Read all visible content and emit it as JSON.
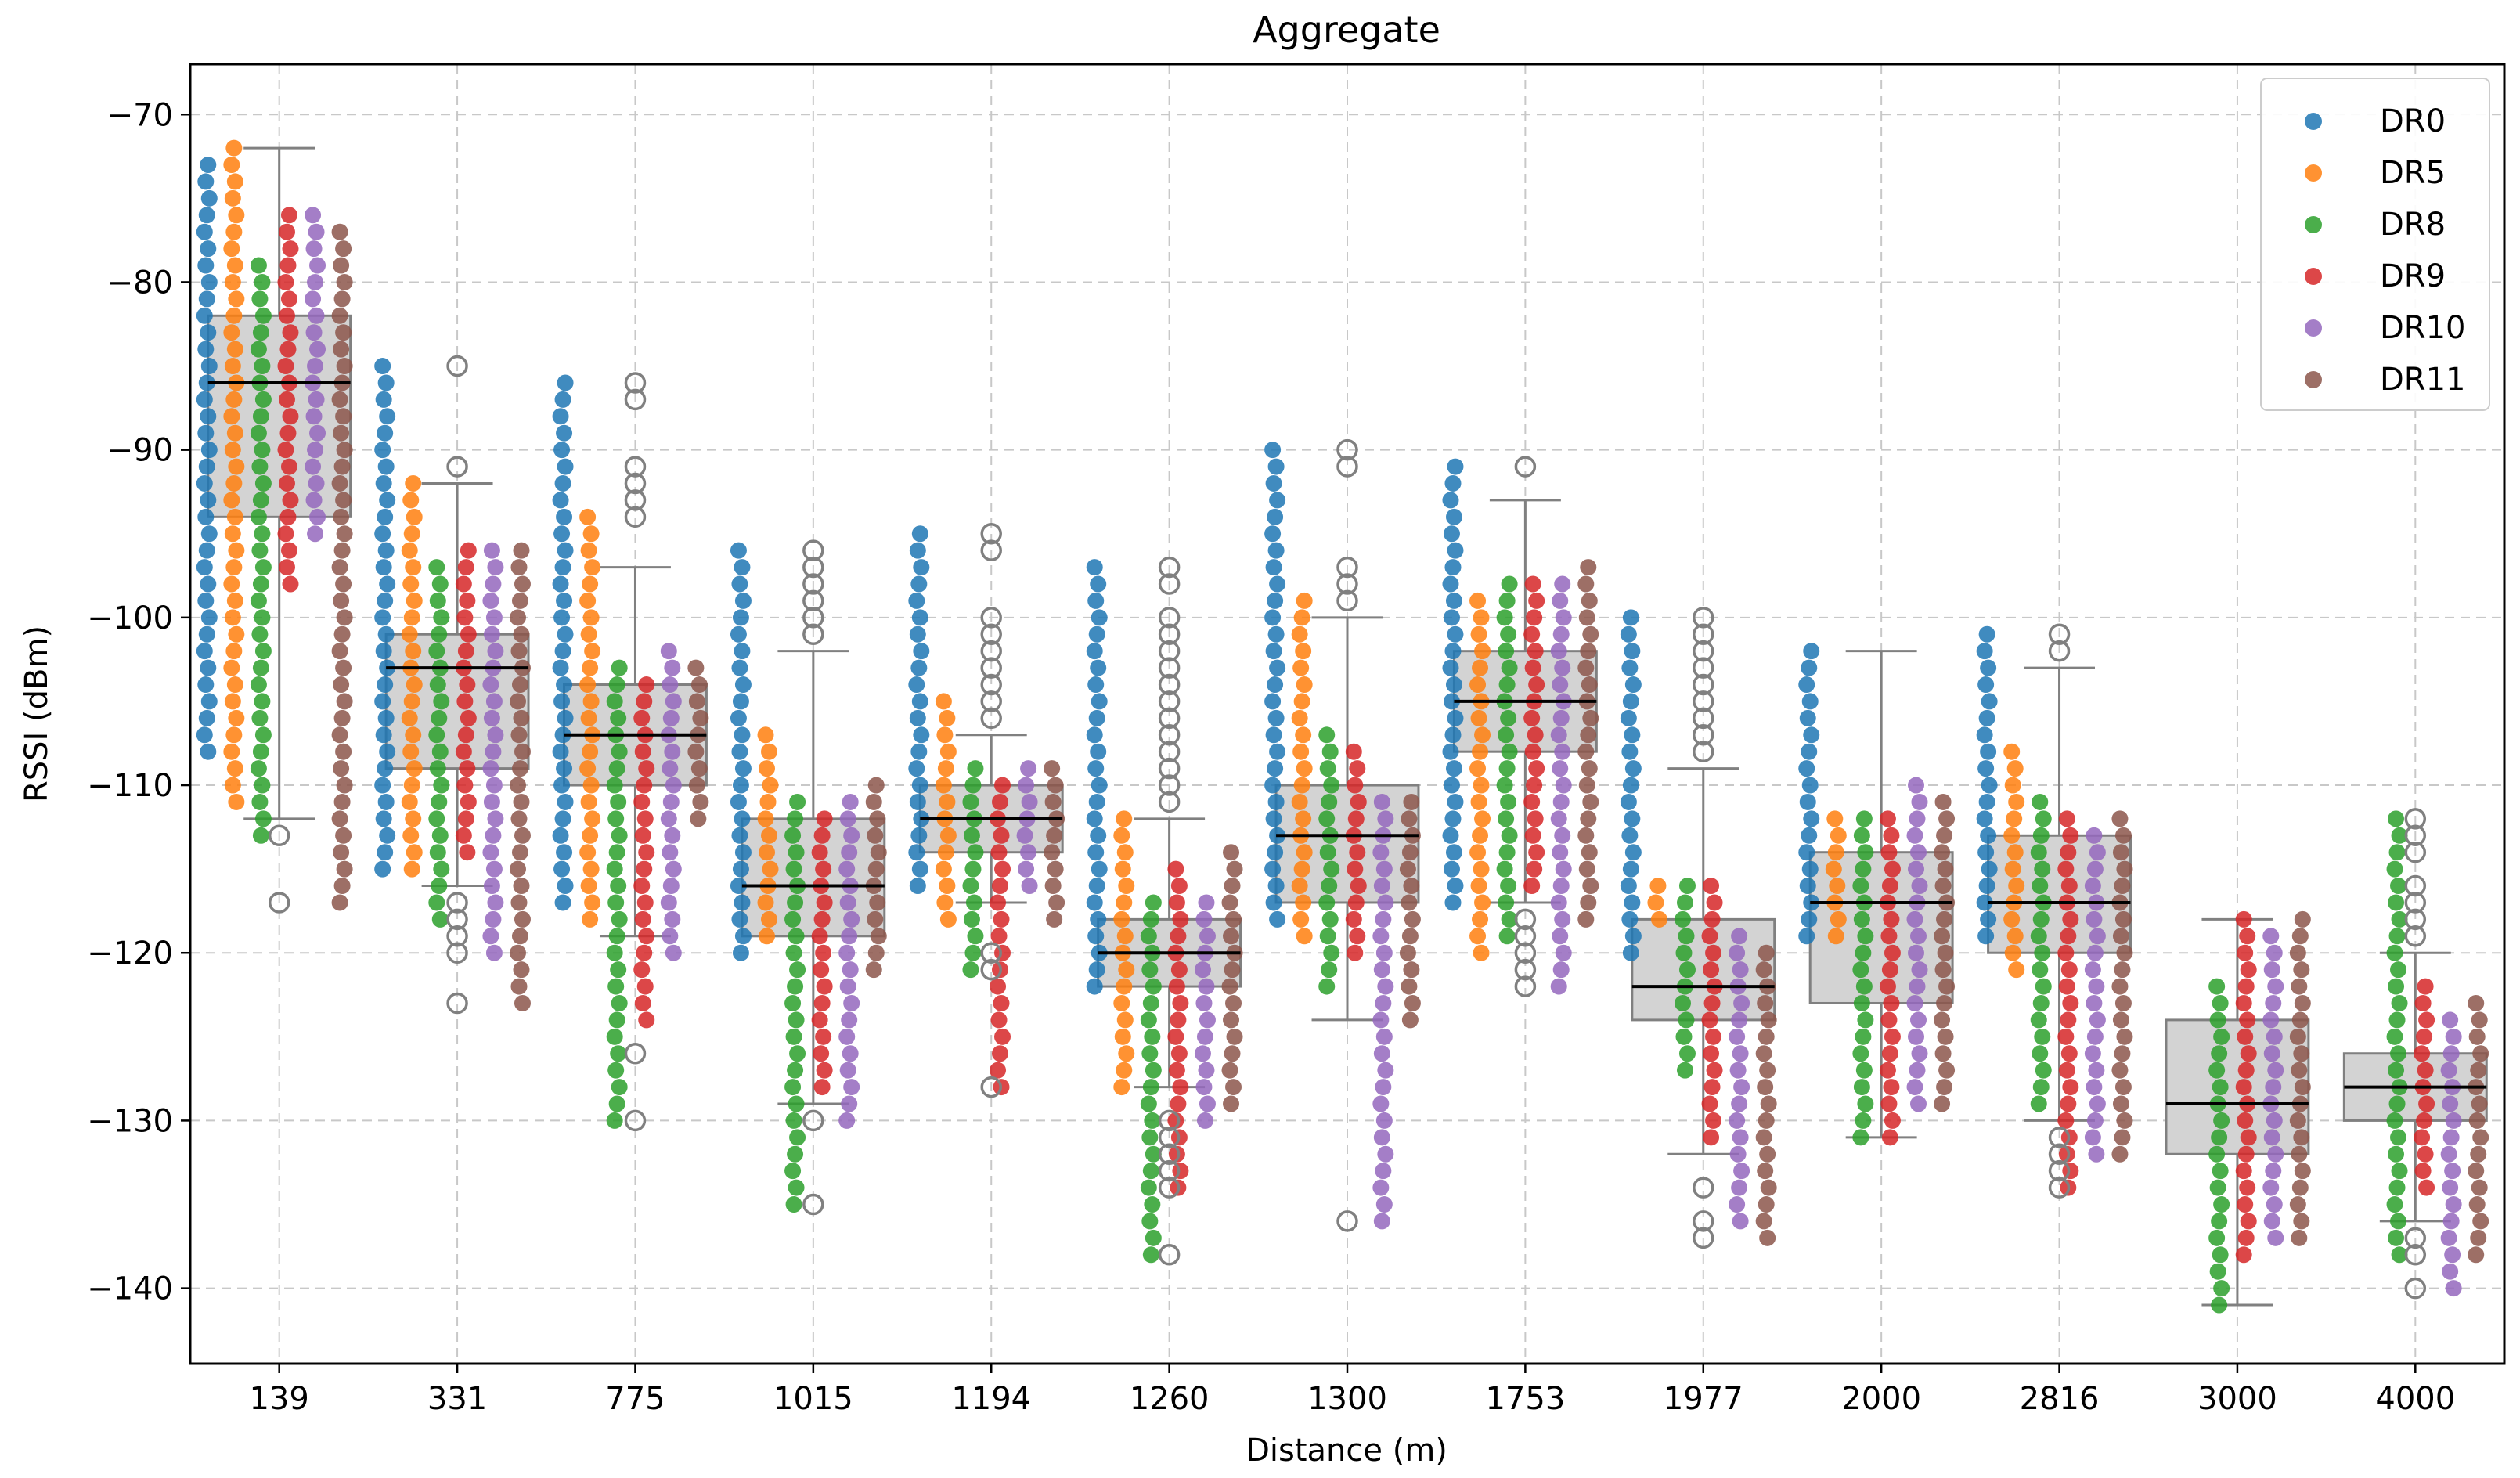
{
  "chart_data": {
    "type": "box+strip",
    "title": "Aggregate",
    "xlabel": "Distance (m)",
    "ylabel": "RSSI (dBm)",
    "ylim": [
      -144.5,
      -67
    ],
    "yticks": [
      -70,
      -80,
      -90,
      -100,
      -110,
      -120,
      -130,
      -140
    ],
    "grid": true,
    "legend_position": "top-right",
    "colors": {
      "DR0": "#1f77b4",
      "DR5": "#ff7f0e",
      "DR8": "#2ca02c",
      "DR9": "#d62728",
      "DR10": "#9467bd",
      "DR11": "#8c564b",
      "box_fill": "#d3d3d3",
      "box_edge": "#808080",
      "median": "#000000"
    },
    "series": [
      {
        "name": "DR0"
      },
      {
        "name": "DR5"
      },
      {
        "name": "DR8"
      },
      {
        "name": "DR9"
      },
      {
        "name": "DR10"
      },
      {
        "name": "DR11"
      }
    ],
    "categories": [
      "139",
      "331",
      "775",
      "1015",
      "1194",
      "1260",
      "1300",
      "1753",
      "1977",
      "2000",
      "2816",
      "3000",
      "4000"
    ],
    "boxes": [
      {
        "category": "139",
        "whisker_low": -112,
        "q1": -94,
        "median": -86,
        "q3": -82,
        "whisker_high": -72,
        "outliers": [
          -113,
          -117
        ]
      },
      {
        "category": "331",
        "whisker_low": -116,
        "q1": -109,
        "median": -103,
        "q3": -101,
        "whisker_high": -92,
        "outliers": [
          -85,
          -91,
          -117,
          -118,
          -119,
          -120,
          -123
        ]
      },
      {
        "category": "775",
        "whisker_low": -119,
        "q1": -110,
        "median": -107,
        "q3": -104,
        "whisker_high": -97,
        "outliers": [
          -86,
          -87,
          -91,
          -92,
          -93,
          -94,
          -126,
          -130
        ]
      },
      {
        "category": "1015",
        "whisker_low": -129,
        "q1": -119,
        "median": -116,
        "q3": -112,
        "whisker_high": -102,
        "outliers": [
          -96,
          -97,
          -98,
          -99,
          -100,
          -101,
          -130,
          -135
        ]
      },
      {
        "category": "1194",
        "whisker_low": -117,
        "q1": -114,
        "median": -112,
        "q3": -110,
        "whisker_high": -107,
        "outliers": [
          -95,
          -96,
          -100,
          -101,
          -102,
          -103,
          -104,
          -105,
          -106,
          -120,
          -121,
          -128
        ]
      },
      {
        "category": "1260",
        "whisker_low": -128,
        "q1": -122,
        "median": -120,
        "q3": -118,
        "whisker_high": -112,
        "outliers": [
          -97,
          -98,
          -100,
          -101,
          -102,
          -103,
          -104,
          -105,
          -106,
          -107,
          -108,
          -109,
          -110,
          -111,
          -130,
          -131,
          -132,
          -133,
          -134,
          -138
        ]
      },
      {
        "category": "1300",
        "whisker_low": -124,
        "q1": -117,
        "median": -113,
        "q3": -110,
        "whisker_high": -100,
        "outliers": [
          -90,
          -91,
          -97,
          -98,
          -99,
          -136
        ]
      },
      {
        "category": "1753",
        "whisker_low": -117,
        "q1": -108,
        "median": -105,
        "q3": -102,
        "whisker_high": -93,
        "outliers": [
          -91,
          -118,
          -119,
          -120,
          -121,
          -122
        ]
      },
      {
        "category": "1977",
        "whisker_low": -132,
        "q1": -124,
        "median": -122,
        "q3": -118,
        "whisker_high": -109,
        "outliers": [
          -100,
          -101,
          -102,
          -103,
          -104,
          -105,
          -106,
          -107,
          -108,
          -134,
          -136,
          -137
        ]
      },
      {
        "category": "2000",
        "whisker_low": -131,
        "q1": -123,
        "median": -117,
        "q3": -114,
        "whisker_high": -102,
        "outliers": []
      },
      {
        "category": "2816",
        "whisker_low": -130,
        "q1": -120,
        "median": -117,
        "q3": -113,
        "whisker_high": -103,
        "outliers": [
          -101,
          -102,
          -131,
          -132,
          -133,
          -134
        ]
      },
      {
        "category": "3000",
        "whisker_low": -141,
        "q1": -132,
        "median": -129,
        "q3": -124,
        "whisker_high": -118,
        "outliers": []
      },
      {
        "category": "4000",
        "whisker_low": -136,
        "q1": -130,
        "median": -128,
        "q3": -126,
        "whisker_high": -120,
        "outliers": [
          -112,
          -113,
          -114,
          -116,
          -117,
          -118,
          -119,
          -137,
          -138,
          -140
        ]
      }
    ],
    "strip_ranges": [
      {
        "category": "139",
        "DR0": [
          -108,
          -73
        ],
        "DR5": [
          -111,
          -72
        ],
        "DR8": [
          -113,
          -79
        ],
        "DR9": [
          -98,
          -76
        ],
        "DR10": [
          -95,
          -76
        ],
        "DR11": [
          -117,
          -77
        ]
      },
      {
        "category": "331",
        "DR0": [
          -115,
          -85
        ],
        "DR5": [
          -115,
          -92
        ],
        "DR8": [
          -118,
          -97
        ],
        "DR9": [
          -114,
          -96
        ],
        "DR10": [
          -120,
          -96
        ],
        "DR11": [
          -123,
          -96
        ]
      },
      {
        "category": "775",
        "DR0": [
          -117,
          -86
        ],
        "DR5": [
          -118,
          -94
        ],
        "DR8": [
          -130,
          -103
        ],
        "DR9": [
          -124,
          -104
        ],
        "DR10": [
          -120,
          -102
        ],
        "DR11": [
          -112,
          -103
        ]
      },
      {
        "category": "1015",
        "DR0": [
          -120,
          -96
        ],
        "DR5": [
          -119,
          -107
        ],
        "DR8": [
          -135,
          -111
        ],
        "DR9": [
          -128,
          -112
        ],
        "DR10": [
          -130,
          -111
        ],
        "DR11": [
          -121,
          -110
        ]
      },
      {
        "category": "1194",
        "DR0": [
          -116,
          -95
        ],
        "DR5": [
          -118,
          -105
        ],
        "DR8": [
          -121,
          -109
        ],
        "DR9": [
          -128,
          -110
        ],
        "DR10": [
          -116,
          -109
        ],
        "DR11": [
          -118,
          -109
        ]
      },
      {
        "category": "1260",
        "DR0": [
          -122,
          -97
        ],
        "DR5": [
          -128,
          -112
        ],
        "DR8": [
          -138,
          -117
        ],
        "DR9": [
          -134,
          -115
        ],
        "DR10": [
          -130,
          -117
        ],
        "DR11": [
          -129,
          -114
        ]
      },
      {
        "category": "1300",
        "DR0": [
          -118,
          -90
        ],
        "DR5": [
          -119,
          -99
        ],
        "DR8": [
          -122,
          -107
        ],
        "DR9": [
          -120,
          -108
        ],
        "DR10": [
          -136,
          -111
        ],
        "DR11": [
          -124,
          -111
        ]
      },
      {
        "category": "1753",
        "DR0": [
          -117,
          -91
        ],
        "DR5": [
          -120,
          -99
        ],
        "DR8": [
          -119,
          -98
        ],
        "DR9": [
          -116,
          -98
        ],
        "DR10": [
          -122,
          -98
        ],
        "DR11": [
          -118,
          -97
        ]
      },
      {
        "category": "1977",
        "DR0": [
          -120,
          -100
        ],
        "DR5": [
          -118,
          -116
        ],
        "DR8": [
          -127,
          -116
        ],
        "DR9": [
          -131,
          -116
        ],
        "DR10": [
          -136,
          -119
        ],
        "DR11": [
          -137,
          -120
        ]
      },
      {
        "category": "2000",
        "DR0": [
          -119,
          -102
        ],
        "DR5": [
          -119,
          -112
        ],
        "DR8": [
          -131,
          -112
        ],
        "DR9": [
          -131,
          -112
        ],
        "DR10": [
          -129,
          -110
        ],
        "DR11": [
          -129,
          -111
        ]
      },
      {
        "category": "2816",
        "DR0": [
          -119,
          -101
        ],
        "DR5": [
          -121,
          -108
        ],
        "DR8": [
          -129,
          -111
        ],
        "DR9": [
          -134,
          -112
        ],
        "DR10": [
          -132,
          -113
        ],
        "DR11": [
          -132,
          -112
        ]
      },
      {
        "category": "3000",
        "DR0": [],
        "DR5": [],
        "DR8": [
          -141,
          -122
        ],
        "DR9": [
          -138,
          -118
        ],
        "DR10": [
          -137,
          -119
        ],
        "DR11": [
          -137,
          -118
        ]
      },
      {
        "category": "4000",
        "DR0": [],
        "DR5": [],
        "DR8": [
          -138,
          -112
        ],
        "DR9": [
          -134,
          -122
        ],
        "DR10": [
          -140,
          -124
        ],
        "DR11": [
          -138,
          -123
        ]
      }
    ]
  }
}
